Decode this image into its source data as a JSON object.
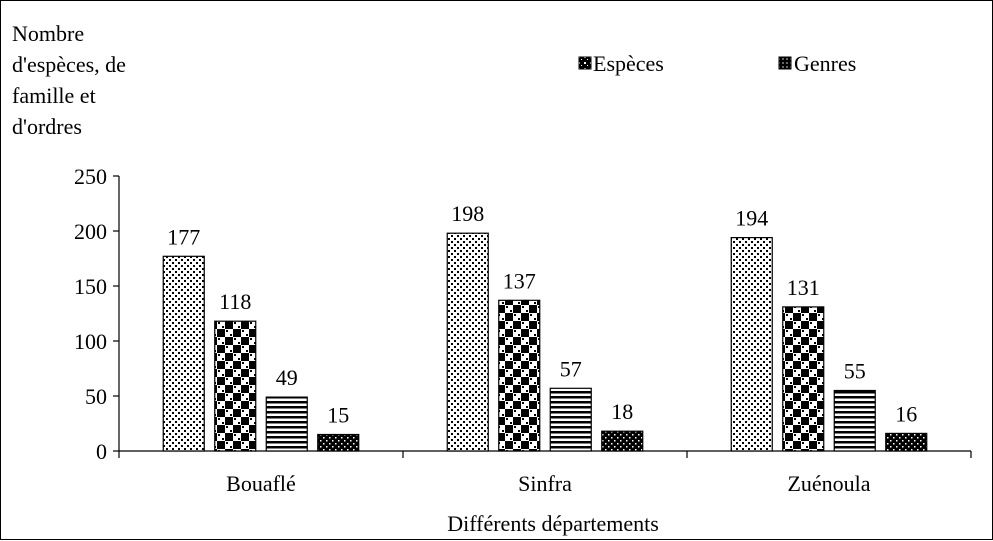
{
  "chart_data": {
    "type": "bar",
    "ylabel": "Nombre d'espèces, de famille et d'ordres",
    "ylabel_lines": [
      "Nombre",
      "d'espèces, de",
      "famille et",
      "d'ordres"
    ],
    "xlabel": "Différents départements",
    "ylim": [
      0,
      250
    ],
    "yticks": [
      0,
      50,
      100,
      150,
      200,
      250
    ],
    "categories": [
      "Bouaflé",
      "Sinfra",
      "Zuénoula"
    ],
    "series": [
      {
        "name": "Espèces",
        "values": [
          177,
          198,
          194
        ],
        "pattern": "dots"
      },
      {
        "name": "Genres",
        "values": [
          118,
          137,
          131
        ],
        "pattern": "checker"
      },
      {
        "values": [
          49,
          57,
          55
        ],
        "pattern": "hlines"
      },
      {
        "values": [
          15,
          18,
          16
        ],
        "pattern": "dense"
      }
    ],
    "legend": {
      "placement": "top-right",
      "entries": [
        "Espèces",
        "Genres"
      ]
    },
    "grid": false
  }
}
